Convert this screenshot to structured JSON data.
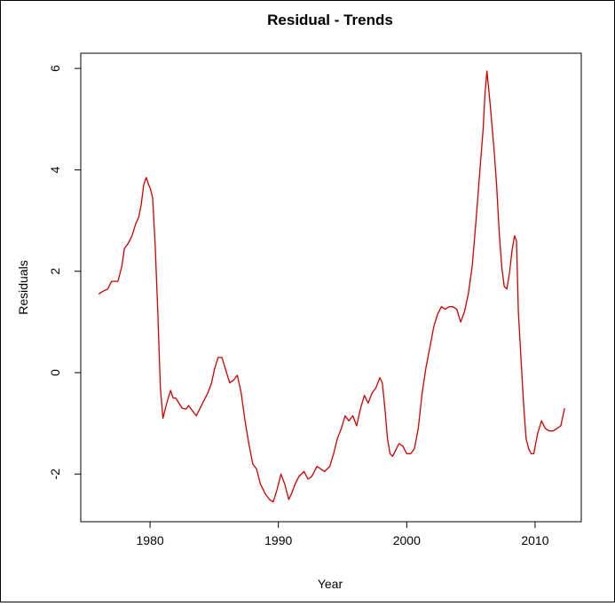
{
  "chart_data": {
    "type": "line",
    "title": "Residual - Trends",
    "xlabel": "Year",
    "ylabel": "Residuals",
    "xlim": [
      1974.6,
      2013.6
    ],
    "ylim": [
      -2.94,
      6.3
    ],
    "grid": false,
    "legend": "none",
    "x_ticks": [
      1980,
      1990,
      2000,
      2010
    ],
    "x_tick_labels": [
      "1980",
      "1990",
      "2000",
      "2010"
    ],
    "y_ticks": [
      -2,
      0,
      2,
      4,
      6
    ],
    "y_tick_labels": [
      "-2",
      "0",
      "2",
      "4",
      "6"
    ],
    "series": [
      {
        "color": "#cc0000",
        "x": [
          1976.0,
          1976.3,
          1976.7,
          1977.0,
          1977.5,
          1977.8,
          1978.0,
          1978.3,
          1978.6,
          1978.9,
          1979.1,
          1979.3,
          1979.5,
          1979.7,
          1979.9,
          1980.0,
          1980.2,
          1980.4,
          1980.6,
          1980.8,
          1981.0,
          1981.3,
          1981.6,
          1981.8,
          1982.0,
          1982.5,
          1982.8,
          1983.0,
          1983.3,
          1983.6,
          1983.9,
          1984.2,
          1984.5,
          1984.8,
          1985.0,
          1985.3,
          1985.6,
          1985.9,
          1986.2,
          1986.5,
          1986.8,
          1987.1,
          1987.4,
          1987.7,
          1988.0,
          1988.3,
          1988.6,
          1989.0,
          1989.3,
          1989.6,
          1989.9,
          1990.2,
          1990.5,
          1990.8,
          1991.0,
          1991.3,
          1991.6,
          1992.0,
          1992.3,
          1992.6,
          1993.0,
          1993.3,
          1993.6,
          1994.0,
          1994.3,
          1994.6,
          1994.9,
          1995.2,
          1995.5,
          1995.8,
          1996.1,
          1996.4,
          1996.7,
          1997.0,
          1997.3,
          1997.6,
          1997.9,
          1998.1,
          1998.3,
          1998.5,
          1998.7,
          1998.9,
          1999.1,
          1999.4,
          1999.7,
          2000.0,
          2000.3,
          2000.6,
          2000.9,
          2001.2,
          2001.5,
          2001.8,
          2002.1,
          2002.4,
          2002.7,
          2003.0,
          2003.3,
          2003.6,
          2003.9,
          2004.2,
          2004.5,
          2004.8,
          2005.1,
          2005.4,
          2005.7,
          2005.95,
          2006.1,
          2006.25,
          2006.5,
          2006.8,
          2007.0,
          2007.2,
          2007.4,
          2007.6,
          2007.8,
          2008.0,
          2008.2,
          2008.4,
          2008.55,
          2008.7,
          2008.9,
          2009.1,
          2009.3,
          2009.5,
          2009.7,
          2009.9,
          2010.2,
          2010.5,
          2010.8,
          2011.1,
          2011.4,
          2011.7,
          2012.0,
          2012.3
        ],
        "y": [
          1.55,
          1.6,
          1.65,
          1.8,
          1.8,
          2.1,
          2.45,
          2.55,
          2.7,
          2.95,
          3.05,
          3.3,
          3.7,
          3.85,
          3.7,
          3.65,
          3.45,
          2.5,
          1.2,
          -0.3,
          -0.9,
          -0.6,
          -0.35,
          -0.5,
          -0.5,
          -0.7,
          -0.72,
          -0.65,
          -0.75,
          -0.85,
          -0.7,
          -0.55,
          -0.4,
          -0.2,
          0.05,
          0.3,
          0.3,
          0.05,
          -0.2,
          -0.15,
          -0.05,
          -0.4,
          -0.95,
          -1.4,
          -1.8,
          -1.9,
          -2.2,
          -2.4,
          -2.5,
          -2.55,
          -2.3,
          -2.0,
          -2.2,
          -2.5,
          -2.4,
          -2.2,
          -2.05,
          -1.95,
          -2.1,
          -2.05,
          -1.85,
          -1.9,
          -1.95,
          -1.85,
          -1.6,
          -1.3,
          -1.1,
          -0.85,
          -0.95,
          -0.85,
          -1.05,
          -0.7,
          -0.45,
          -0.6,
          -0.4,
          -0.3,
          -0.1,
          -0.2,
          -0.7,
          -1.3,
          -1.6,
          -1.65,
          -1.55,
          -1.4,
          -1.45,
          -1.6,
          -1.6,
          -1.5,
          -1.1,
          -0.4,
          0.1,
          0.5,
          0.9,
          1.15,
          1.3,
          1.25,
          1.3,
          1.3,
          1.25,
          1.0,
          1.2,
          1.55,
          2.1,
          3.0,
          4.0,
          4.8,
          5.5,
          5.95,
          5.3,
          4.4,
          3.7,
          2.8,
          2.1,
          1.7,
          1.65,
          1.95,
          2.4,
          2.7,
          2.6,
          1.2,
          0.3,
          -0.6,
          -1.3,
          -1.5,
          -1.6,
          -1.6,
          -1.2,
          -0.95,
          -1.1,
          -1.15,
          -1.15,
          -1.1,
          -1.05,
          -0.7
        ]
      }
    ]
  }
}
